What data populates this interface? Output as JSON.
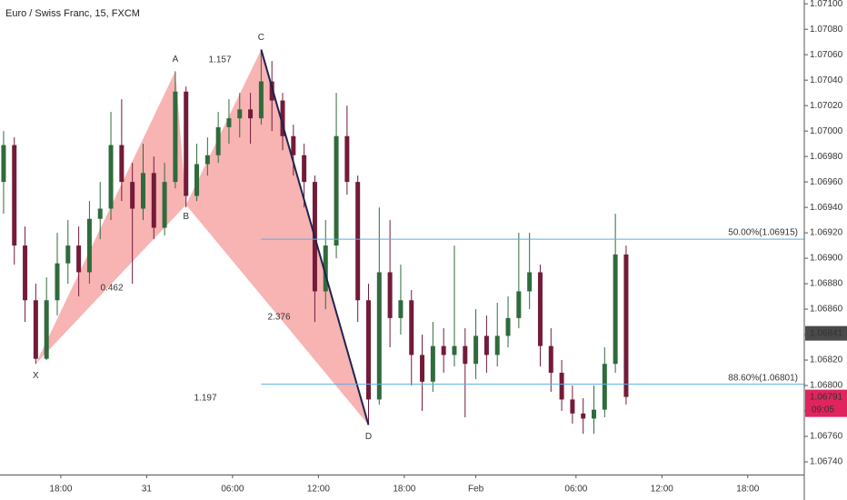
{
  "chart_data": {
    "type": "candlestick",
    "title": "Euro / Swiss Franc, 15, FXCM",
    "x": [
      -4,
      -3.25,
      -2.5,
      -1.75,
      -1,
      -0.25,
      0.5,
      1.25,
      2,
      2.75,
      3.5,
      4.25,
      5,
      5.75,
      6.5,
      7.25,
      8,
      8.75,
      9.5,
      10.25,
      11,
      11.75,
      12.5,
      13.25,
      14,
      14.75,
      15.5,
      16.25,
      17,
      17.75,
      18.5,
      19.25,
      20,
      20.75,
      21.5,
      22.25,
      23,
      23.75,
      24.5,
      25.25,
      26,
      26.75,
      27.5,
      28.25,
      29,
      29.75,
      30.5,
      31.25,
      32,
      32.75,
      33.5,
      34.25,
      35,
      35.75,
      36.5,
      37.25,
      38,
      38.75,
      39.5
    ],
    "open": [
      1.0696,
      1.06989,
      1.0691,
      1.06867,
      1.06821,
      1.06867,
      1.06896,
      1.0691,
      1.06889,
      1.06931,
      1.06939,
      1.06989,
      1.0696,
      1.06939,
      1.06967,
      1.06924,
      1.0696,
      1.07031,
      1.06949,
      1.06974,
      1.06981,
      1.07003,
      1.0701,
      1.07017,
      1.0701,
      1.07039,
      1.07024,
      1.06996,
      1.06981,
      1.0696,
      1.06874,
      1.0691,
      1.06996,
      1.0696,
      1.06867,
      1.06789,
      1.06889,
      1.06853,
      1.06867,
      1.06824,
      1.06803,
      1.06831,
      1.06824,
      1.06831,
      1.06817,
      1.06839,
      1.06824,
      1.06839,
      1.06853,
      1.06874,
      1.06889,
      1.06831,
      1.0681,
      1.06789,
      1.06778,
      1.06774,
      1.06781,
      1.06817,
      1.06903
    ],
    "high": [
      1.07,
      1.06995,
      1.06925,
      1.0688,
      1.06885,
      1.0692,
      1.0693,
      1.06925,
      1.06945,
      1.0696,
      1.07015,
      1.07025,
      1.06975,
      1.0699,
      1.0698,
      1.06975,
      1.07047,
      1.07035,
      1.0699,
      1.06995,
      1.07015,
      1.07025,
      1.0703,
      1.0703,
      1.07064,
      1.07055,
      1.0703,
      1.07005,
      1.0699,
      1.06965,
      1.0693,
      1.0703,
      1.0702,
      1.06965,
      1.0688,
      1.0694,
      1.0693,
      1.06895,
      1.06875,
      1.0684,
      1.0685,
      1.06845,
      1.0691,
      1.06845,
      1.0686,
      1.06855,
      1.06865,
      1.0687,
      1.0692,
      1.0692,
      1.06895,
      1.06845,
      1.0682,
      1.068,
      1.0679,
      1.068,
      1.0683,
      1.06935,
      1.0691
    ],
    "low": [
      1.06935,
      1.06895,
      1.0685,
      1.06817,
      1.0682,
      1.06855,
      1.0688,
      1.0687,
      1.0688,
      1.06915,
      1.0693,
      1.06945,
      1.0688,
      1.0693,
      1.06915,
      1.06918,
      1.06955,
      1.0694,
      1.06945,
      1.06965,
      1.06975,
      1.0699,
      1.06995,
      1.0699,
      1.07005,
      1.07,
      1.06985,
      1.06965,
      1.0694,
      1.0685,
      1.0686,
      1.069,
      1.0695,
      1.0685,
      1.06769,
      1.06785,
      1.0683,
      1.0684,
      1.068,
      1.0678,
      1.06795,
      1.0681,
      1.06815,
      1.06775,
      1.06805,
      1.0681,
      1.06815,
      1.0683,
      1.06845,
      1.0686,
      1.06815,
      1.06795,
      1.0678,
      1.0677,
      1.06762,
      1.06762,
      1.06775,
      1.0681,
      1.06785
    ],
    "close": [
      1.06989,
      1.0691,
      1.06867,
      1.06821,
      1.06867,
      1.06896,
      1.0691,
      1.06889,
      1.06931,
      1.06939,
      1.06989,
      1.0696,
      1.06939,
      1.06967,
      1.06924,
      1.0696,
      1.07031,
      1.06949,
      1.06974,
      1.06981,
      1.07003,
      1.0701,
      1.07017,
      1.0701,
      1.07039,
      1.07024,
      1.06996,
      1.06981,
      1.0696,
      1.06874,
      1.0691,
      1.06996,
      1.0696,
      1.06867,
      1.06789,
      1.06889,
      1.06853,
      1.06867,
      1.06824,
      1.06803,
      1.06831,
      1.06824,
      1.06831,
      1.06817,
      1.06839,
      1.06824,
      1.06839,
      1.06853,
      1.06874,
      1.06889,
      1.06831,
      1.0681,
      1.06789,
      1.06778,
      1.06774,
      1.06781,
      1.06817,
      1.06903,
      1.06791
    ],
    "up_color": "#2f6b3c",
    "down_color": "#731b38",
    "xlim": [
      -4.25,
      51.95
    ],
    "ylim": [
      1.0673,
      1.07103
    ],
    "xticks": [
      {
        "value": 0,
        "label": "18:00"
      },
      {
        "value": 6,
        "label": "31"
      },
      {
        "value": 12,
        "label": "06:00"
      },
      {
        "value": 18,
        "label": "12:00"
      },
      {
        "value": 24,
        "label": "18:00"
      },
      {
        "value": 29,
        "label": "Feb"
      },
      {
        "value": 36,
        "label": "06:00"
      },
      {
        "value": 42,
        "label": "12:00"
      },
      {
        "value": 48,
        "label": "18:00"
      }
    ],
    "yticks": [
      {
        "value": 1.0674,
        "label": "1.06740"
      },
      {
        "value": 1.0676,
        "label": "1.06760"
      },
      {
        "value": 1.0678,
        "label": "1.06780"
      },
      {
        "value": 1.068,
        "label": "1.06800"
      },
      {
        "value": 1.0682,
        "label": "1.06820"
      },
      {
        "value": 1.0684,
        "label": "1.06840"
      },
      {
        "value": 1.0686,
        "label": "1.06860"
      },
      {
        "value": 1.0688,
        "label": "1.06880"
      },
      {
        "value": 1.069,
        "label": "1.06900"
      },
      {
        "value": 1.0692,
        "label": "1.06920"
      },
      {
        "value": 1.0694,
        "label": "1.06940"
      },
      {
        "value": 1.0696,
        "label": "1.06960"
      },
      {
        "value": 1.0698,
        "label": "1.06980"
      },
      {
        "value": 1.07,
        "label": "1.07000"
      },
      {
        "value": 1.0702,
        "label": "1.07020"
      },
      {
        "value": 1.0704,
        "label": "1.07040"
      },
      {
        "value": 1.0706,
        "label": "1.07060"
      },
      {
        "value": 1.0708,
        "label": "1.07080"
      },
      {
        "value": 1.071,
        "label": "1.07100"
      }
    ],
    "pattern": {
      "color": "#f6a0a0",
      "line_color": "#1f2350",
      "points": [
        {
          "label": "X",
          "x": -1.75,
          "y": 1.06817
        },
        {
          "label": "A",
          "x": 8,
          "y": 1.07047
        },
        {
          "label": "B",
          "x": 8.75,
          "y": 1.06942
        },
        {
          "label": "C",
          "x": 14,
          "y": 1.07064
        },
        {
          "label": "D",
          "x": 21.5,
          "y": 1.06769
        }
      ],
      "ratios": [
        "1.157",
        "0.462",
        "2.376",
        "1.197"
      ]
    },
    "levels": [
      {
        "value": 1.06915,
        "label": "50.00%(1.06915)",
        "start": 14
      },
      {
        "value": 1.06801,
        "label": "88.60%(1.06801)",
        "start": 14
      }
    ],
    "level_color": "#5aaee8",
    "marker_price": {
      "value": 1.06841,
      "label": "1.06841"
    },
    "last_price": {
      "value": 1.06791,
      "label": "1.06791"
    },
    "countdown": "09:05"
  }
}
